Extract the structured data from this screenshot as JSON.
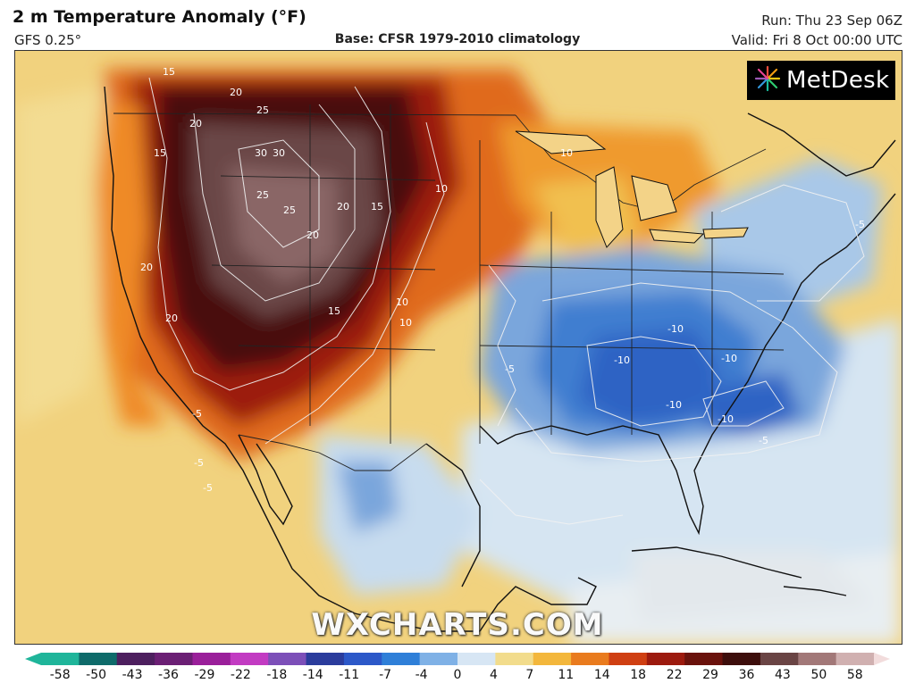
{
  "header": {
    "title": "2 m Temperature Anomaly (°F)",
    "model": "GFS 0.25°",
    "base": "Base: CFSR 1979-2010 climatology",
    "run": "Run: Thu 23 Sep 06Z",
    "valid": "Valid: Fri 8 Oct 00:00 UTC"
  },
  "logo": {
    "text": "MetDesk",
    "icon": "metdesk-starburst-icon"
  },
  "watermark": "WXCHARTS.COM",
  "colorbar": {
    "ticks": [
      "-58",
      "-50",
      "-43",
      "-36",
      "-29",
      "-22",
      "-18",
      "-14",
      "-11",
      "-7",
      "-4",
      "0",
      "4",
      "7",
      "11",
      "14",
      "18",
      "22",
      "29",
      "36",
      "43",
      "50",
      "58"
    ],
    "colors": [
      "#1fb59a",
      "#0f6b6a",
      "#4d1f5e",
      "#6b1f74",
      "#9a1f9a",
      "#c23bc2",
      "#7c4fb8",
      "#2b3c9c",
      "#2c58c8",
      "#2f7fd8",
      "#7fb1e6",
      "#d7e6f4",
      "#f2dc8c",
      "#f3b73c",
      "#e97b1e",
      "#cf3f12",
      "#9c1a0e",
      "#6a120c",
      "#3d0e0c",
      "#6a4444",
      "#a27878",
      "#d0b0b0",
      "#f2dcdc"
    ]
  },
  "contour_labels": [
    "15",
    "20",
    "20",
    "25",
    "30",
    "30",
    "25",
    "25",
    "20",
    "20",
    "15",
    "20",
    "15",
    "20",
    "15",
    "10",
    "10",
    "10",
    "10",
    "-5",
    "-5",
    "-10",
    "-10",
    "-10",
    "-10",
    "-10",
    "-5",
    "-5",
    "-5",
    "-5"
  ]
}
